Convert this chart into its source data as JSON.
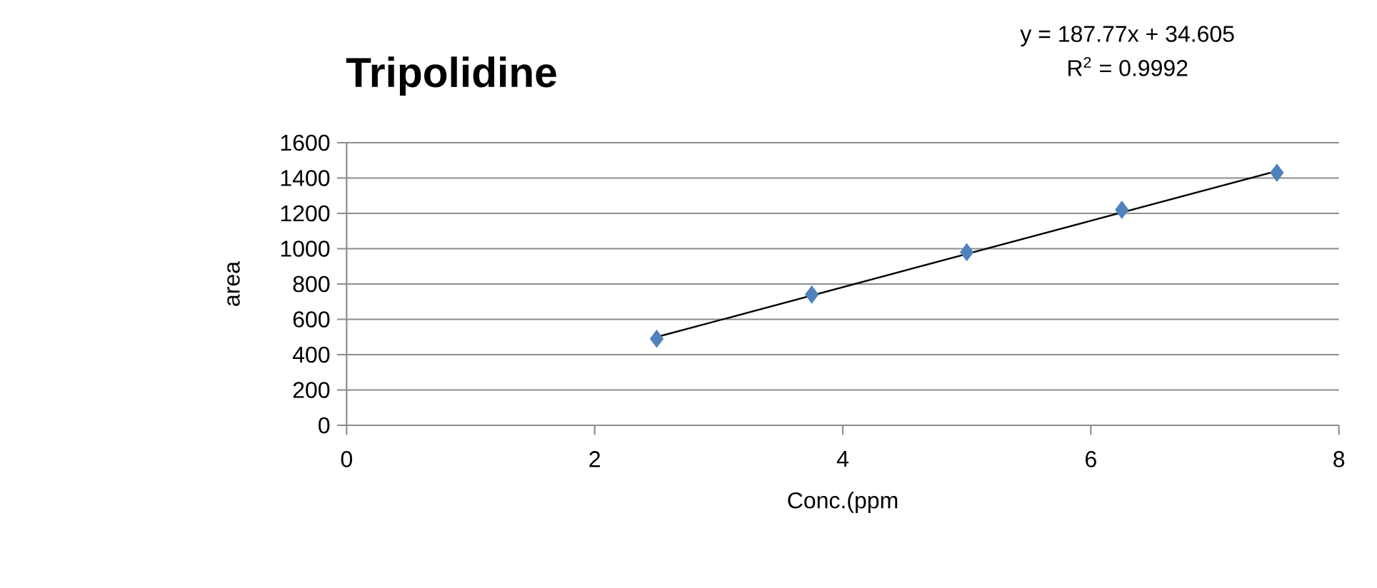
{
  "chart_data": {
    "type": "scatter",
    "title": "Tripolidine",
    "xlabel": "Conc.(ppm",
    "ylabel": "area",
    "annotations": [
      "y = 187.77x + 34.605",
      "R$^{2}$ = 0.9992"
    ],
    "xlim": [
      0,
      8
    ],
    "ylim": [
      0,
      1600
    ],
    "xticks": [
      0,
      2,
      4,
      6,
      8
    ],
    "yticks": [
      0,
      200,
      400,
      600,
      800,
      1000,
      1200,
      1400,
      1600
    ],
    "grid": "y",
    "marker": "diamond",
    "series": [
      {
        "color": "#4f81bd",
        "x": [
          2.5,
          3.75,
          5,
          6.25,
          7.5
        ],
        "values": [
          490,
          740,
          980,
          1220,
          1430
        ]
      },
      {
        "type": "line",
        "marker": "none",
        "color": "#000000",
        "x": [
          2.5,
          7.5
        ],
        "values": [
          500,
          1440
        ]
      }
    ]
  }
}
